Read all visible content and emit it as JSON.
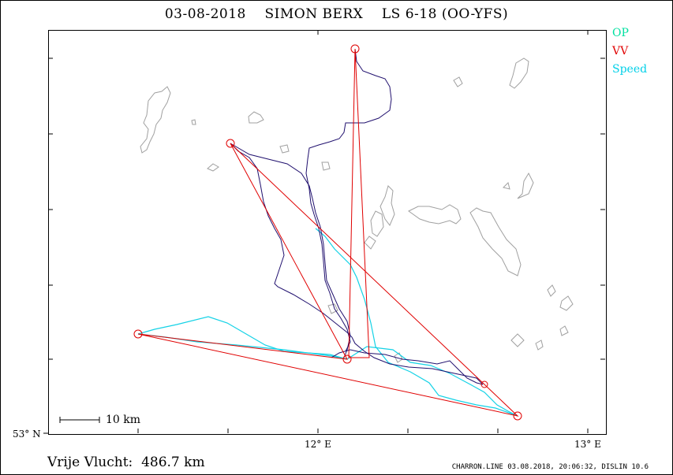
{
  "title": "03-08-2018    SIMON BERX    LS 6-18 (OO-YFS)",
  "legend": [
    {
      "label": "OP",
      "color": "#00e0a0"
    },
    {
      "label": "VV",
      "color": "#e00000"
    },
    {
      "label": "Speed",
      "color": "#00d0e8"
    }
  ],
  "axes": {
    "y_label": "53° N",
    "x_labels": [
      "12° E",
      "13° E"
    ]
  },
  "scale_bar": {
    "label": "10 km"
  },
  "summary": "Vrije Vlucht:  486.7 km",
  "footer": "CHARRON.LINE 03.08.2018, 20:06:32, DISLIN 10.6",
  "colors": {
    "track": "#20106e",
    "speed_track": "#14d2e6",
    "task": "#e00000",
    "coast": "#a0a0a0"
  }
}
